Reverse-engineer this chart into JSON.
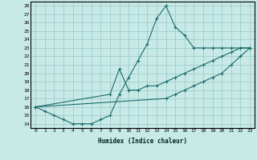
{
  "title": "",
  "xlabel": "Humidex (Indice chaleur)",
  "bg_color": "#c8eae6",
  "grid_color": "#a0cccc",
  "line_color": "#1a6b6b",
  "xlim": [
    -0.5,
    23.5
  ],
  "ylim": [
    13.5,
    28.5
  ],
  "xticks": [
    0,
    1,
    2,
    3,
    4,
    5,
    6,
    7,
    8,
    9,
    10,
    11,
    12,
    13,
    14,
    15,
    16,
    17,
    18,
    19,
    20,
    21,
    22,
    23
  ],
  "yticks": [
    14,
    15,
    16,
    17,
    18,
    19,
    20,
    21,
    22,
    23,
    24,
    25,
    26,
    27,
    28
  ],
  "line1_x": [
    0,
    1,
    2,
    3,
    4,
    5,
    6,
    7,
    8,
    9,
    10,
    11,
    12,
    13,
    14,
    15,
    16,
    17,
    18,
    19,
    20,
    21,
    22,
    23
  ],
  "line1_y": [
    16.0,
    15.5,
    15.0,
    14.5,
    14.0,
    14.0,
    14.0,
    14.5,
    15.0,
    17.5,
    19.5,
    21.5,
    23.5,
    26.5,
    28.0,
    25.5,
    24.5,
    23.0,
    23.0,
    23.0,
    23.0,
    23.0,
    23.0,
    23.0
  ],
  "line2_x": [
    0,
    8,
    9,
    10,
    11,
    12,
    13,
    14,
    15,
    16,
    17,
    18,
    19,
    20,
    21,
    22,
    23
  ],
  "line2_y": [
    16.0,
    17.5,
    20.5,
    18.0,
    18.0,
    18.5,
    18.5,
    19.0,
    19.5,
    20.0,
    20.5,
    21.0,
    21.5,
    22.0,
    22.5,
    23.0,
    23.0
  ],
  "line3_x": [
    0,
    14,
    15,
    16,
    17,
    18,
    19,
    20,
    21,
    22,
    23
  ],
  "line3_y": [
    16.0,
    17.0,
    17.5,
    18.0,
    18.5,
    19.0,
    19.5,
    20.0,
    21.0,
    22.0,
    23.0
  ]
}
